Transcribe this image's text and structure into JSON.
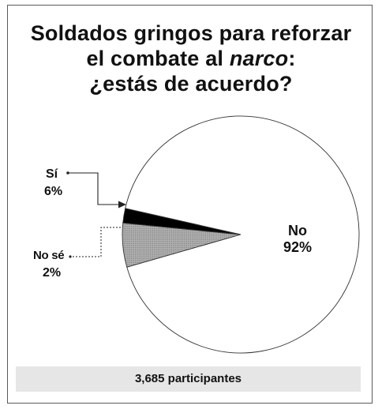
{
  "title": {
    "line1": "Soldados gringos para reforzar",
    "line2_pre": "el combate al ",
    "line2_em": "narco",
    "line2_post": ":",
    "line3": "¿estás de acuerdo?"
  },
  "chart_data": {
    "type": "pie",
    "title": "Soldados gringos para reforzar el combate al narco: ¿estás de acuerdo?",
    "slices": [
      {
        "label": "No",
        "value": 92,
        "value_label": "92%",
        "color": "#ffffff",
        "pattern": "none"
      },
      {
        "label": "Sí",
        "value": 6,
        "value_label": "6%",
        "color": "#a8a8a8",
        "pattern": "dots"
      },
      {
        "label": "No sé",
        "value": 2,
        "value_label": "2%",
        "color": "#000000",
        "pattern": "none"
      }
    ],
    "legend": "none",
    "label_style": "callouts"
  },
  "footer": {
    "text": "3,685 participantes"
  }
}
